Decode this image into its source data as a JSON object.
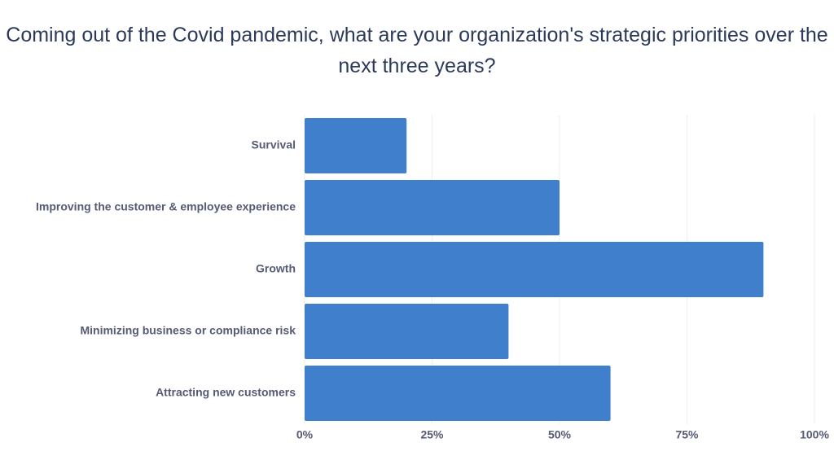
{
  "chart_data": {
    "type": "bar",
    "orientation": "horizontal",
    "title": "Coming out of the Covid pandemic, what are your organization's strategic priorities over the next three years?",
    "categories": [
      "Survival",
      "Improving the customer & employee experience",
      "Growth",
      "Minimizing business or compliance risk",
      "Attracting new customers"
    ],
    "values": [
      20,
      50,
      90,
      40,
      60
    ],
    "color": "#3f7fcb",
    "xlim": [
      0,
      100
    ],
    "xticks": [
      {
        "value": 0,
        "label": "0%"
      },
      {
        "value": 25,
        "label": "25%"
      },
      {
        "value": 50,
        "label": "50%"
      },
      {
        "value": 75,
        "label": "75%"
      },
      {
        "value": 100,
        "label": "100%"
      }
    ],
    "grid": true
  }
}
